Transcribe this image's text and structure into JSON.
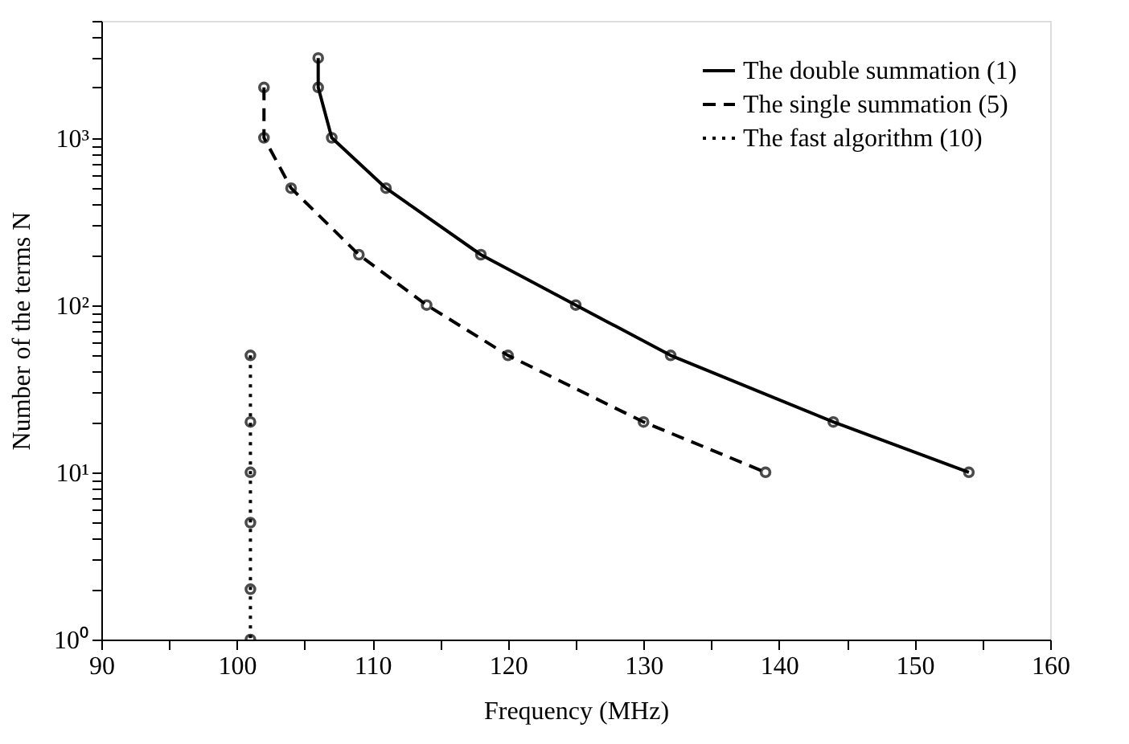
{
  "chart_data": {
    "type": "line",
    "xlabel": "Frequency (MHz)",
    "ylabel": "Number of the terms  N",
    "log": "y",
    "grid": false,
    "legend": "top right",
    "marker": "circle",
    "xlim": [
      90,
      160
    ],
    "ylim": [
      1,
      5000
    ],
    "xticks": [
      90,
      {
        "value": 95,
        "label": null
      },
      100,
      {
        "value": 105,
        "label": null
      },
      110,
      {
        "value": 115,
        "label": null
      },
      120,
      {
        "value": 125,
        "label": null
      },
      130,
      {
        "value": 135,
        "label": null
      },
      140,
      {
        "value": 145,
        "label": null
      },
      150,
      {
        "value": 155,
        "label": null
      },
      160
    ],
    "yticks": [
      {
        "value": 1,
        "label": "10⁰"
      },
      {
        "value": 2,
        "label": null
      },
      {
        "value": 3,
        "label": null
      },
      {
        "value": 4,
        "label": null
      },
      {
        "value": 5,
        "label": null
      },
      {
        "value": 6,
        "label": null
      },
      {
        "value": 7,
        "label": null
      },
      {
        "value": 8,
        "label": null
      },
      {
        "value": 9,
        "label": null
      },
      {
        "value": 10,
        "label": "10¹"
      },
      {
        "value": 20,
        "label": null
      },
      {
        "value": 30,
        "label": null
      },
      {
        "value": 40,
        "label": null
      },
      {
        "value": 50,
        "label": null
      },
      {
        "value": 60,
        "label": null
      },
      {
        "value": 70,
        "label": null
      },
      {
        "value": 80,
        "label": null
      },
      {
        "value": 90,
        "label": null
      },
      {
        "value": 100,
        "label": "10²"
      },
      {
        "value": 200,
        "label": null
      },
      {
        "value": 300,
        "label": null
      },
      {
        "value": 400,
        "label": null
      },
      {
        "value": 500,
        "label": null
      },
      {
        "value": 600,
        "label": null
      },
      {
        "value": 700,
        "label": null
      },
      {
        "value": 800,
        "label": null
      },
      {
        "value": 900,
        "label": null
      },
      {
        "value": 1000,
        "label": "10³"
      },
      {
        "value": 2000,
        "label": null
      },
      {
        "value": 3000,
        "label": null
      },
      {
        "value": 4000,
        "label": null
      },
      {
        "value": 5000,
        "label": null
      }
    ],
    "series": [
      {
        "name": "The double summation (1)",
        "color": "#000000",
        "line_style": "solid",
        "x": [
          106,
          106,
          107,
          111,
          118,
          125,
          132,
          144,
          154
        ],
        "values": [
          3000,
          2000,
          1000,
          500,
          200,
          100,
          50,
          20,
          10
        ]
      },
      {
        "name": "The single summation (5)",
        "color": "#000000",
        "line_style": "dashed",
        "x": [
          102,
          102,
          104,
          109,
          114,
          120,
          130,
          139
        ],
        "values": [
          2000,
          1000,
          500,
          200,
          100,
          50,
          20,
          10
        ]
      },
      {
        "name": "The fast algorithm (10)",
        "color": "#000000",
        "line_style": "dotted",
        "x": [
          101,
          101,
          101,
          101,
          101,
          101
        ],
        "values": [
          50,
          20,
          10,
          5,
          2,
          1
        ]
      }
    ]
  }
}
